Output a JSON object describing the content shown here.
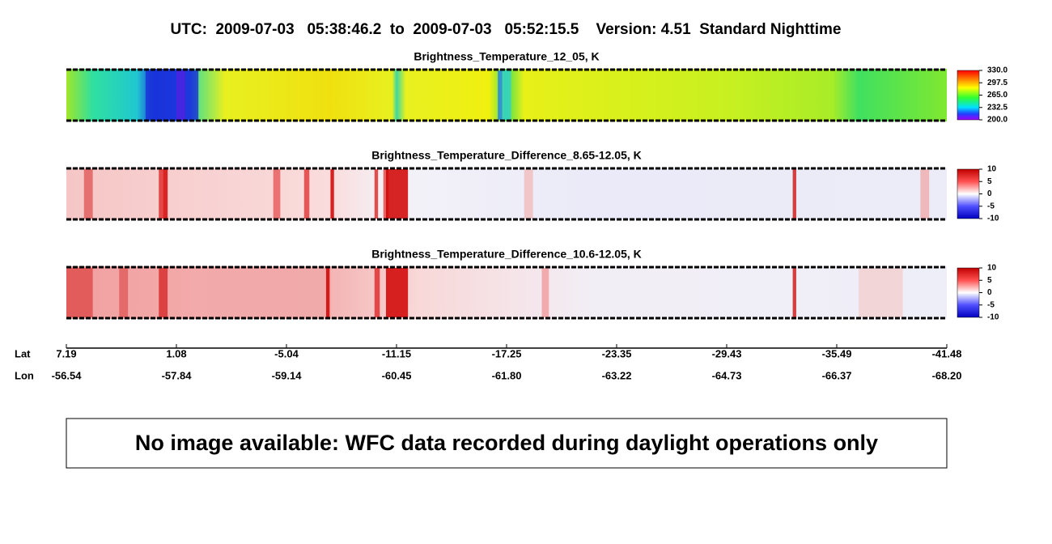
{
  "title": "UTC:  2009-07-03   05:38:46.2  to  2009-07-03   05:52:15.5    Version: 4.51  Standard Nighttime",
  "panels": [
    {
      "title": "Brightness_Temperature_12_05, K",
      "clim": [
        200,
        330
      ],
      "ticks": [
        {
          "value": 330,
          "label": "330.0"
        },
        {
          "value": 297.5,
          "label": "297.5"
        },
        {
          "value": 265,
          "label": "265.0"
        },
        {
          "value": 232.5,
          "label": "232.5"
        },
        {
          "value": 200,
          "label": "200.0"
        }
      ]
    },
    {
      "title": "Brightness_Temperature_Difference_8.65-12.05, K",
      "clim": [
        -10,
        10
      ],
      "ticks": [
        10,
        5,
        0,
        -5,
        -10
      ]
    },
    {
      "title": "Brightness_Temperature_Difference_10.6-12.05, K",
      "clim": [
        -10,
        10
      ],
      "ticks": [
        10,
        5,
        0,
        -5,
        -10
      ]
    }
  ],
  "axis": {
    "lat_label": "Lat",
    "lon_label": "Lon",
    "lat": [
      "7.19",
      "1.08",
      "-5.04",
      "-11.15",
      "-17.25",
      "-23.35",
      "-29.43",
      "-35.49",
      "-41.48"
    ],
    "lon": [
      "-56.54",
      "-57.84",
      "-59.14",
      "-60.45",
      "-61.80",
      "-63.22",
      "-64.73",
      "-66.37",
      "-68.20"
    ]
  },
  "message": "No image available: WFC data recorded during daylight operations only"
}
